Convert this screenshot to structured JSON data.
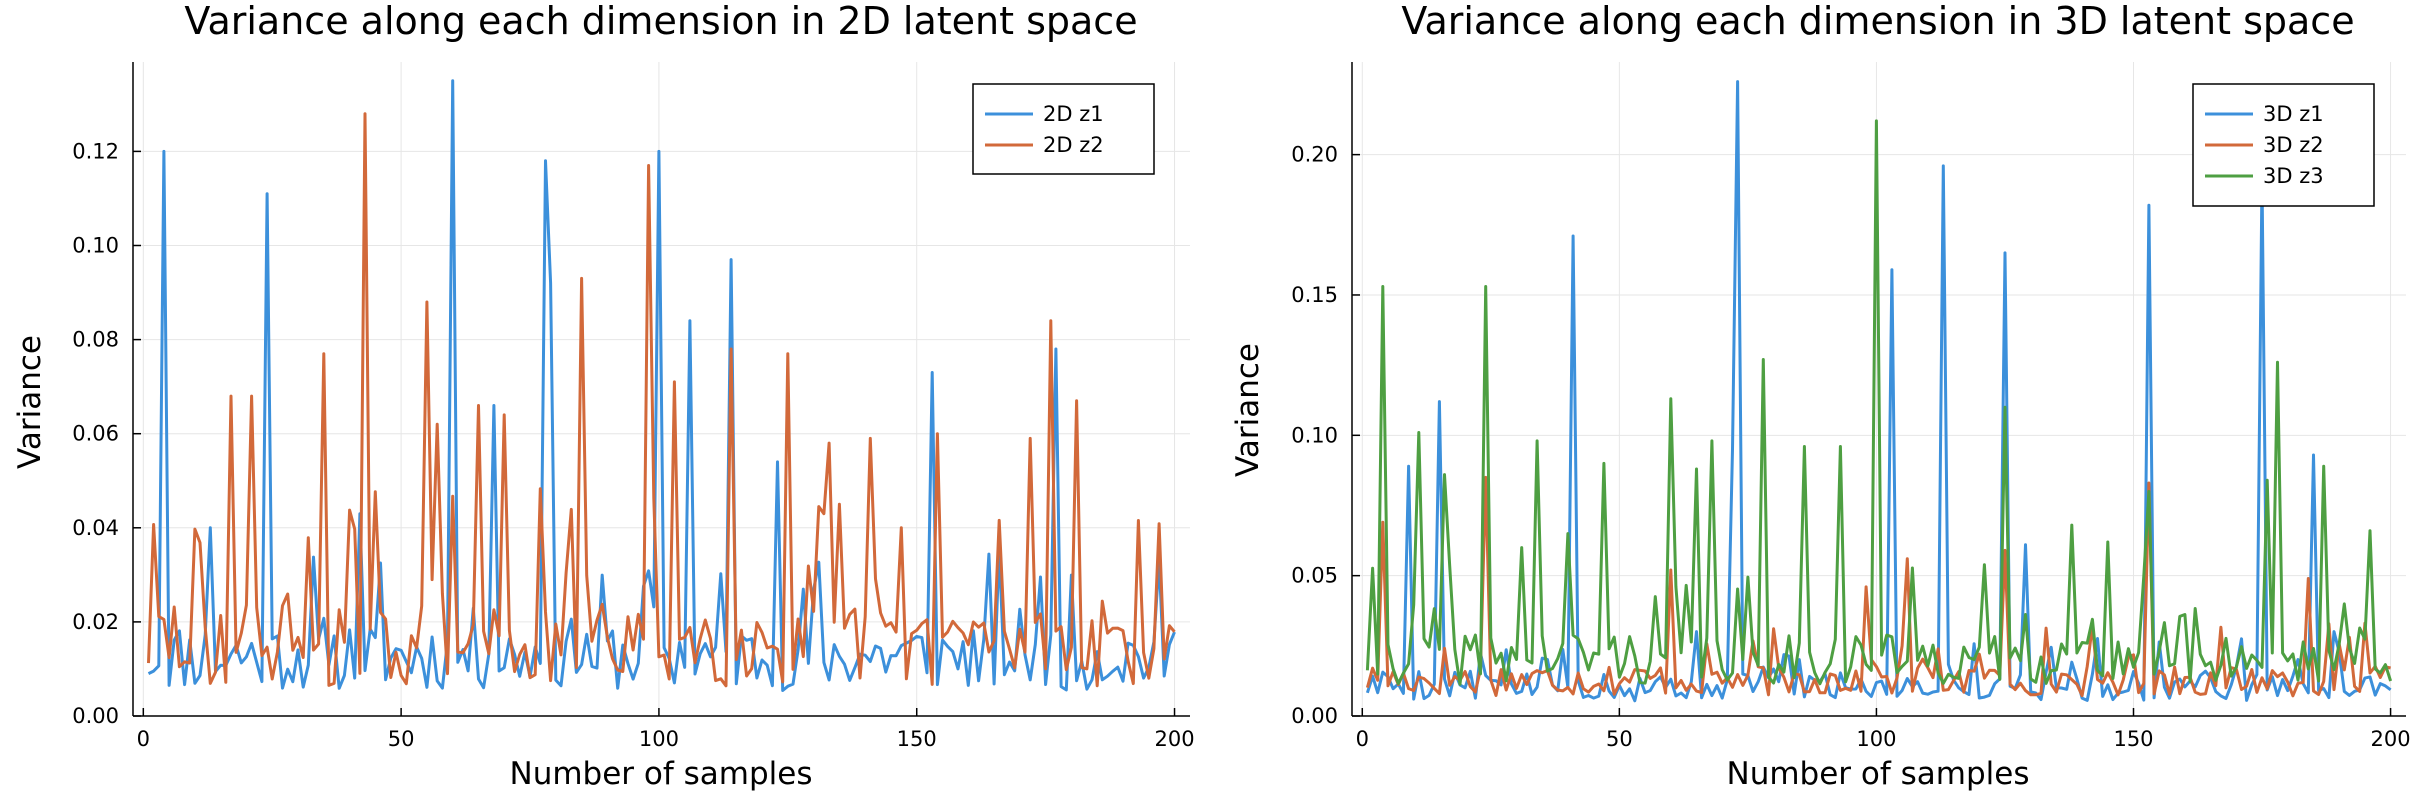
{
  "chart_data": [
    {
      "type": "line",
      "title": "Variance along each dimension in 2D latent space",
      "xlabel": "Number of samples",
      "ylabel": "Variance",
      "xlim": [
        -2,
        203
      ],
      "ylim": [
        0,
        0.139
      ],
      "xticks": [
        0,
        50,
        100,
        150,
        200
      ],
      "yticks": [
        0.0,
        0.02,
        0.04,
        0.06,
        0.08,
        0.1,
        0.12
      ],
      "ytick_labels": [
        "0.00",
        "0.02",
        "0.04",
        "0.06",
        "0.08",
        "0.10",
        "0.12"
      ],
      "xtick_labels": [
        "0",
        "50",
        "100",
        "150",
        "200"
      ],
      "grid": true,
      "legend_position": "top-right",
      "series": [
        {
          "name": "2D z1",
          "color": "#3c90db",
          "peaks": {
            "4": 0.12,
            "24": 0.111,
            "60": 0.135,
            "78": 0.118,
            "79": 0.092,
            "100": 0.12,
            "106": 0.084,
            "114": 0.097,
            "153": 0.073,
            "177": 0.078,
            "68": 0.066,
            "13": 0.04,
            "42": 0.043,
            "123": 0.054
          },
          "base": 0.012,
          "spread": 0.015,
          "seed": 11
        },
        {
          "name": "2D z2",
          "color": "#d2693a",
          "peaks": {
            "43": 0.128,
            "98": 0.117,
            "85": 0.093,
            "55": 0.088,
            "70": 0.064,
            "35": 0.077,
            "176": 0.084,
            "114": 0.078,
            "125": 0.077,
            "17": 0.068,
            "21": 0.068,
            "57": 0.062,
            "65": 0.066,
            "103": 0.071,
            "154": 0.06,
            "141": 0.059,
            "133": 0.058,
            "181": 0.067,
            "172": 0.059
          },
          "base": 0.014,
          "spread": 0.02,
          "seed": 29
        }
      ]
    },
    {
      "type": "line",
      "title": "Variance along each dimension in 3D latent space",
      "xlabel": "Number of samples",
      "ylabel": "Variance",
      "xlim": [
        -2,
        203
      ],
      "ylim": [
        0,
        0.233
      ],
      "xticks": [
        0,
        50,
        100,
        150,
        200
      ],
      "yticks": [
        0.0,
        0.05,
        0.1,
        0.15,
        0.2
      ],
      "ytick_labels": [
        "0.00",
        "0.05",
        "0.10",
        "0.15",
        "0.20"
      ],
      "xtick_labels": [
        "0",
        "50",
        "100",
        "150",
        "200"
      ],
      "grid": true,
      "legend_position": "top-right",
      "series": [
        {
          "name": "3D z1",
          "color": "#3c90db",
          "peaks": {
            "73": 0.226,
            "175": 0.192,
            "113": 0.196,
            "153": 0.182,
            "41": 0.171,
            "125": 0.165,
            "103": 0.159,
            "15": 0.112,
            "72": 0.095,
            "185": 0.093,
            "9": 0.089,
            "129": 0.061
          },
          "base": 0.012,
          "spread": 0.012,
          "seed": 5
        },
        {
          "name": "3D z2",
          "color": "#d2693a",
          "peaks": {
            "4": 0.069,
            "24": 0.085,
            "106": 0.056,
            "153": 0.083,
            "125": 0.059,
            "60": 0.052,
            "98": 0.046,
            "184": 0.049
          },
          "base": 0.016,
          "spread": 0.012,
          "seed": 17
        },
        {
          "name": "3D z3",
          "color": "#4e9f42",
          "peaks": {
            "4": 0.153,
            "24": 0.153,
            "100": 0.212,
            "78": 0.127,
            "125": 0.11,
            "60": 0.113,
            "153": 0.08,
            "176": 0.084,
            "178": 0.126,
            "34": 0.098,
            "11": 0.101,
            "16": 0.086,
            "47": 0.09,
            "65": 0.088,
            "68": 0.098,
            "86": 0.096,
            "93": 0.096,
            "138": 0.068,
            "145": 0.062,
            "196": 0.066,
            "187": 0.089,
            "31": 0.06,
            "40": 0.065
          },
          "base": 0.025,
          "spread": 0.02,
          "seed": 41
        }
      ]
    }
  ]
}
